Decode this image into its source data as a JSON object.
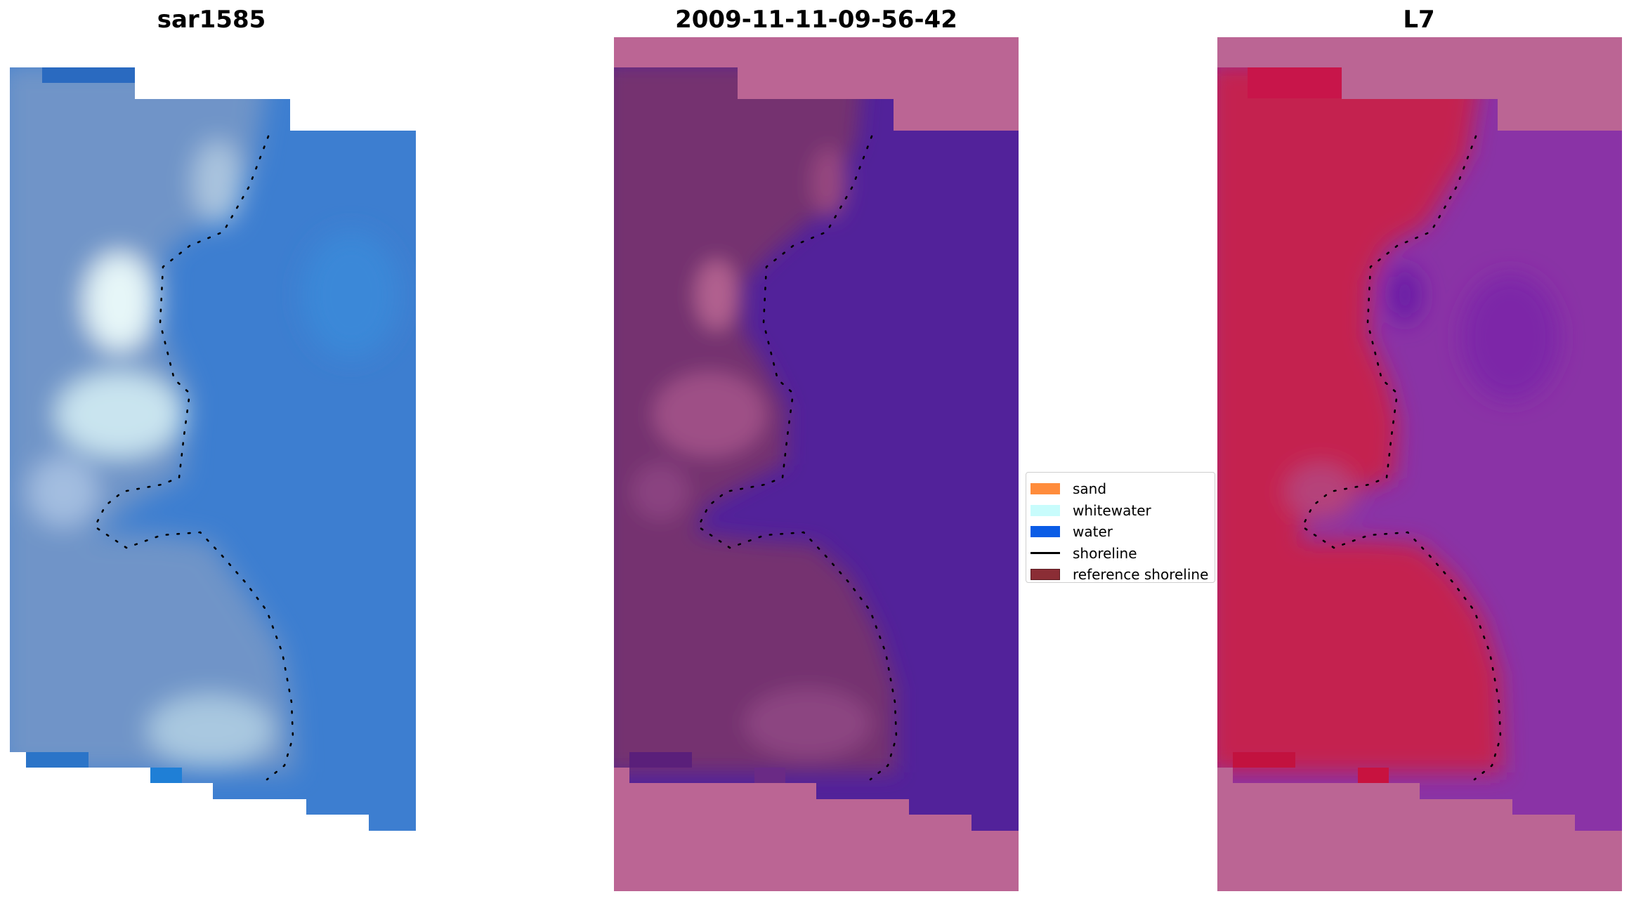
{
  "panels": [
    {
      "title": "sar1585",
      "kind": "rgb-image"
    },
    {
      "title": "2009-11-11-09-56-42",
      "kind": "classified-image"
    },
    {
      "title": "L7",
      "kind": "mndwi-image"
    }
  ],
  "legend": {
    "items": [
      {
        "label": "sand",
        "color": "#ff8c3c",
        "type": "patch"
      },
      {
        "label": "whitewater",
        "color": "#c8fcfc",
        "type": "patch"
      },
      {
        "label": "water",
        "color": "#0a5ce6",
        "type": "patch"
      },
      {
        "label": "shoreline",
        "color": "#000000",
        "type": "line"
      },
      {
        "label": "reference shoreline",
        "color": "#8b2d35",
        "type": "patch"
      }
    ]
  },
  "colors": {
    "rgb_water": "#3d7ed0",
    "rgb_land": "#6f94c8",
    "rgb_foam": "#cfe8f3",
    "class_water": "#52229a",
    "class_land": "#74336f",
    "class_nodata": "#bb6594",
    "mndwi_land": "#c4214f",
    "mndwi_water": "#8a33a6",
    "mndwi_nodata": "#bb6594",
    "shoreline_dots": "#000000"
  }
}
